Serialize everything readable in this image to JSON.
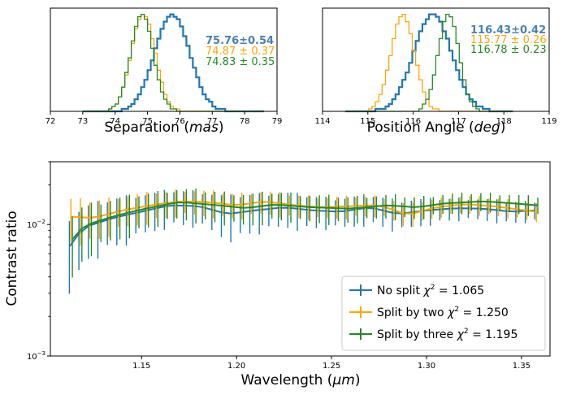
{
  "colors": {
    "blue": "#1f77b4",
    "orange": "#ffa500",
    "green": "#228b22",
    "ann_blue": "#4682b4"
  },
  "chart_data": [
    {
      "type": "histogram",
      "xlabel": "Separation",
      "xlabel_unit": "mas",
      "xlim": [
        72,
        79
      ],
      "xticks": [
        "72",
        "73",
        "74",
        "75",
        "76",
        "77",
        "78",
        "79"
      ],
      "series": [
        {
          "name": "No split",
          "mean": 75.76,
          "std": 0.54,
          "range": [
            73.0,
            78.6
          ],
          "color": "blue"
        },
        {
          "name": "Split by two",
          "mean": 74.87,
          "std": 0.37,
          "range": [
            73.0,
            78.6
          ],
          "color": "orange"
        },
        {
          "name": "Split by three",
          "mean": 74.83,
          "std": 0.35,
          "range": [
            73.0,
            78.6
          ],
          "color": "green"
        }
      ],
      "annotations": [
        "75.76±0.54",
        "74.87 ± 0.37",
        "74.83 ± 0.35"
      ]
    },
    {
      "type": "histogram",
      "xlabel": "Position Angle",
      "xlabel_unit": "deg",
      "xlim": [
        114,
        119
      ],
      "xticks": [
        "114",
        "115",
        "116",
        "117",
        "118",
        "119"
      ],
      "series": [
        {
          "name": "No split",
          "mean": 116.43,
          "std": 0.42,
          "range": [
            114.5,
            118.2
          ],
          "color": "blue"
        },
        {
          "name": "Split by two",
          "mean": 115.77,
          "std": 0.26,
          "range": [
            114.5,
            118.2
          ],
          "color": "orange"
        },
        {
          "name": "Split by three",
          "mean": 116.78,
          "std": 0.23,
          "range": [
            114.5,
            118.2
          ],
          "color": "green"
        }
      ],
      "annotations": [
        "116.43±0.42",
        "115.77 ± 0.26",
        "116.78 ± 0.23"
      ]
    },
    {
      "type": "line",
      "xlabel": "Wavelength",
      "xlabel_unit": "μm",
      "ylabel": "Contrast ratio",
      "yscale": "log",
      "xlim": [
        1.102,
        1.365
      ],
      "ylim": [
        0.001,
        0.03
      ],
      "xticks": [
        "1.15",
        "1.20",
        "1.25",
        "1.30",
        "1.35"
      ],
      "yticks": [
        {
          "base": "10",
          "exp": "−2"
        },
        {
          "base": "10",
          "exp": "−3"
        }
      ],
      "x_start": 1.112,
      "x_end": 1.357,
      "n_points": 50,
      "series": [
        {
          "name": "No split",
          "chi2": "1.065",
          "color": "blue",
          "anchors": [
            [
              1.112,
              0.0068
            ],
            [
              1.12,
              0.0095
            ],
            [
              1.135,
              0.0112
            ],
            [
              1.15,
              0.0125
            ],
            [
              1.165,
              0.014
            ],
            [
              1.18,
              0.0138
            ],
            [
              1.195,
              0.012
            ],
            [
              1.21,
              0.0128
            ],
            [
              1.225,
              0.0135
            ],
            [
              1.24,
              0.0128
            ],
            [
              1.255,
              0.0125
            ],
            [
              1.27,
              0.0135
            ],
            [
              1.285,
              0.012
            ],
            [
              1.3,
              0.0128
            ],
            [
              1.315,
              0.0133
            ],
            [
              1.33,
              0.0132
            ],
            [
              1.345,
              0.0125
            ],
            [
              1.357,
              0.0128
            ]
          ],
          "err_anchors": [
            [
              1.112,
              0.0045
            ],
            [
              1.12,
              0.004
            ],
            [
              1.14,
              0.0045
            ],
            [
              1.16,
              0.004
            ],
            [
              1.18,
              0.004
            ],
            [
              1.2,
              0.0042
            ],
            [
              1.22,
              0.004
            ],
            [
              1.25,
              0.0032
            ],
            [
              1.28,
              0.0032
            ],
            [
              1.31,
              0.0025
            ],
            [
              1.357,
              0.0022
            ]
          ]
        },
        {
          "name": "Split by two",
          "chi2": "1.250",
          "color": "orange",
          "anchors": [
            [
              1.112,
              0.0115
            ],
            [
              1.125,
              0.0112
            ],
            [
              1.14,
              0.0128
            ],
            [
              1.155,
              0.014
            ],
            [
              1.17,
              0.015
            ],
            [
              1.185,
              0.0148
            ],
            [
              1.2,
              0.014
            ],
            [
              1.215,
              0.015
            ],
            [
              1.23,
              0.014
            ],
            [
              1.245,
              0.0135
            ],
            [
              1.26,
              0.0138
            ],
            [
              1.275,
              0.014
            ],
            [
              1.29,
              0.0118
            ],
            [
              1.305,
              0.0135
            ],
            [
              1.32,
              0.0143
            ],
            [
              1.335,
              0.0138
            ],
            [
              1.357,
              0.0125
            ]
          ],
          "err_anchors": [
            [
              1.112,
              0.004
            ],
            [
              1.14,
              0.0035
            ],
            [
              1.17,
              0.0032
            ],
            [
              1.2,
              0.003
            ],
            [
              1.25,
              0.0025
            ],
            [
              1.3,
              0.0022
            ],
            [
              1.357,
              0.002
            ]
          ]
        },
        {
          "name": "Split by three",
          "chi2": "1.195",
          "color": "green",
          "anchors": [
            [
              1.112,
              0.0072
            ],
            [
              1.12,
              0.0098
            ],
            [
              1.135,
              0.0115
            ],
            [
              1.15,
              0.013
            ],
            [
              1.17,
              0.0148
            ],
            [
              1.19,
              0.014
            ],
            [
              1.205,
              0.0133
            ],
            [
              1.22,
              0.0142
            ],
            [
              1.24,
              0.0135
            ],
            [
              1.26,
              0.0132
            ],
            [
              1.28,
              0.014
            ],
            [
              1.295,
              0.0135
            ],
            [
              1.31,
              0.0145
            ],
            [
              1.33,
              0.015
            ],
            [
              1.345,
              0.0145
            ],
            [
              1.357,
              0.014
            ]
          ],
          "err_anchors": [
            [
              1.112,
              0.0042
            ],
            [
              1.13,
              0.004
            ],
            [
              1.16,
              0.0038
            ],
            [
              1.2,
              0.0036
            ],
            [
              1.25,
              0.003
            ],
            [
              1.3,
              0.0025
            ],
            [
              1.357,
              0.0022
            ]
          ]
        }
      ]
    }
  ]
}
